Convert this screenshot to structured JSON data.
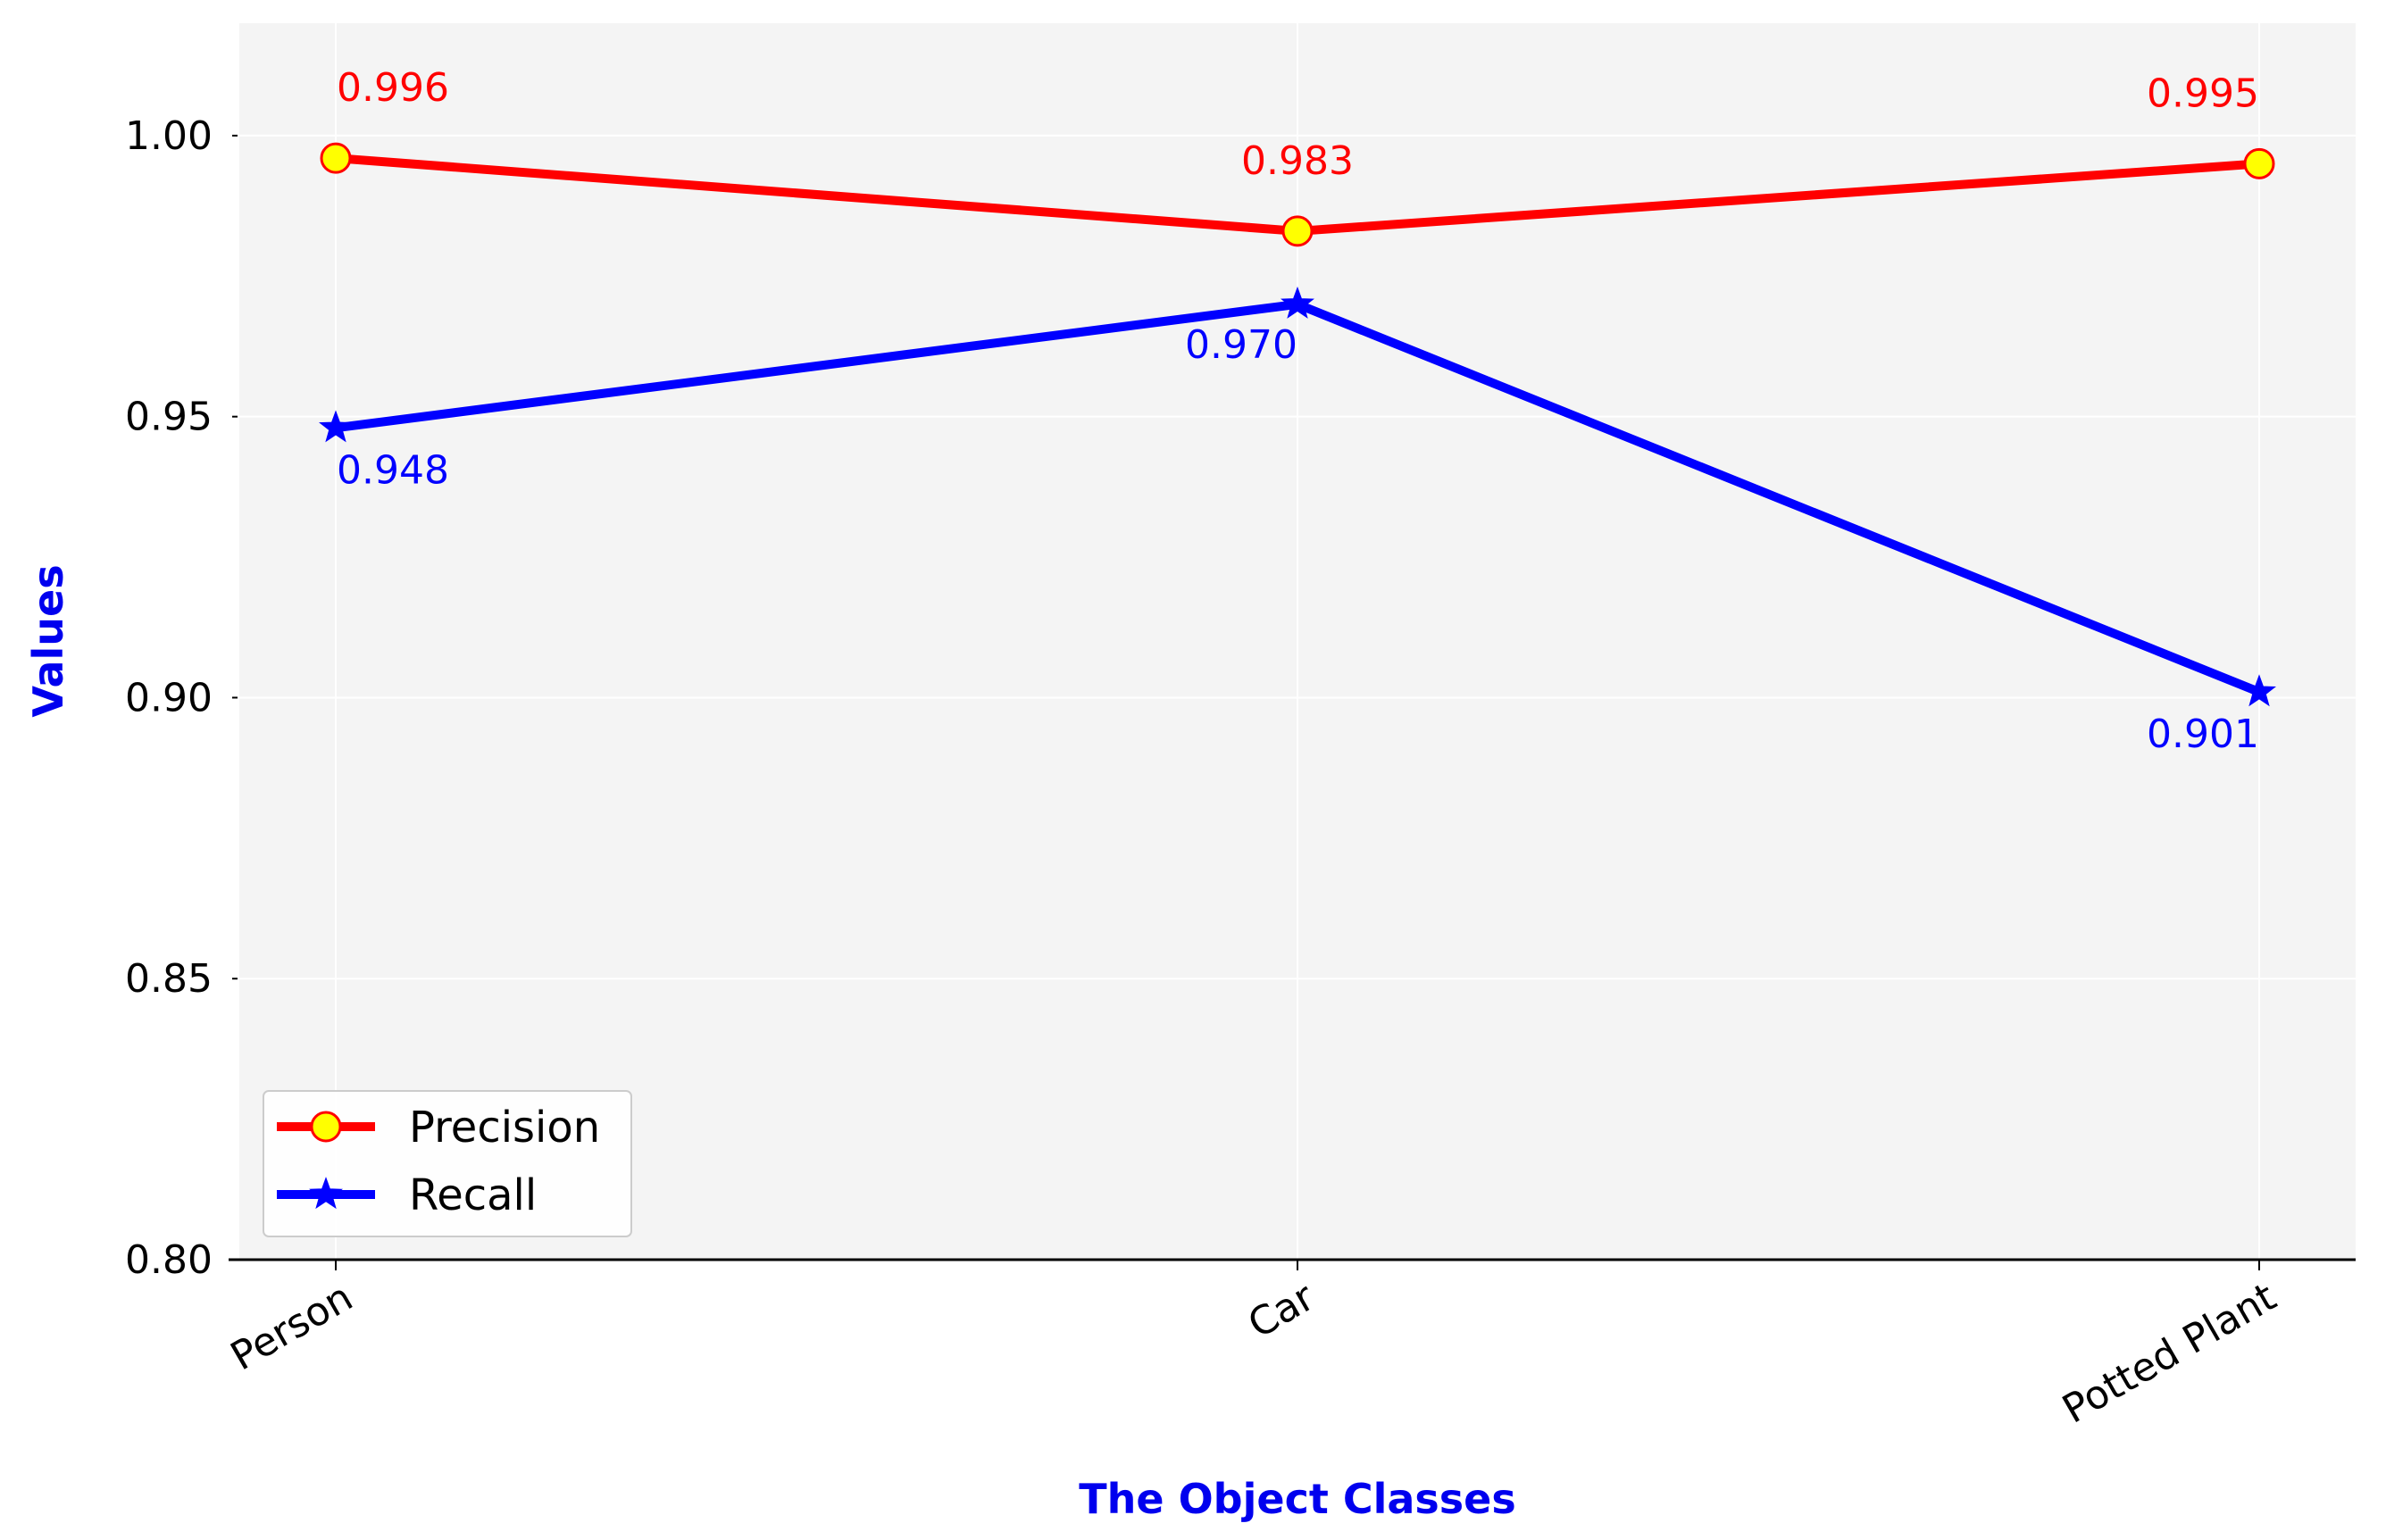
{
  "chart_data": {
    "type": "line",
    "categories": [
      "Person",
      "Car",
      "Potted Plant"
    ],
    "xlabel": "The Object Classes",
    "ylabel": "Values",
    "ylim": [
      0.8,
      1.02
    ],
    "yticks": [
      0.8,
      0.85,
      0.9,
      0.95,
      1.0
    ],
    "ytick_labels": [
      "0.80",
      "0.85",
      "0.90",
      "0.95",
      "1.00"
    ],
    "grid": true,
    "legend_position": "lower-left",
    "series": [
      {
        "name": "Precision",
        "values": [
          0.996,
          0.983,
          0.995
        ],
        "labels": [
          "0.996",
          "0.983",
          "0.995"
        ],
        "color": "#ff0000",
        "marker": "circle",
        "marker_fill": "#ffff00",
        "label_position": "above"
      },
      {
        "name": "Recall",
        "values": [
          0.948,
          0.97,
          0.901
        ],
        "labels": [
          "0.948",
          "0.970",
          "0.901"
        ],
        "color": "#0000ff",
        "marker": "star",
        "label_position": "below"
      }
    ]
  }
}
